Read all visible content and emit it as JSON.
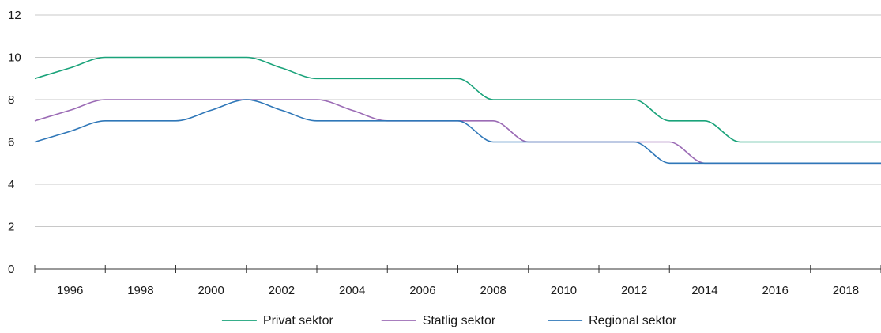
{
  "chart_data": {
    "type": "line",
    "title": "",
    "xlabel": "",
    "ylabel": "",
    "ylim": [
      0,
      12
    ],
    "yticks": [
      0,
      2,
      4,
      6,
      8,
      10,
      12
    ],
    "x": [
      1995,
      1996,
      1997,
      1998,
      1999,
      2000,
      2001,
      2002,
      2003,
      2004,
      2005,
      2006,
      2007,
      2008,
      2009,
      2010,
      2011,
      2012,
      2013,
      2014,
      2015,
      2016,
      2017,
      2018,
      2019
    ],
    "xlim": [
      1995,
      2019
    ],
    "xtick_labels": [
      "1996",
      "1998",
      "2000",
      "2002",
      "2004",
      "2006",
      "2008",
      "2010",
      "2012",
      "2014",
      "2016",
      "2018"
    ],
    "grid": "horizontal",
    "legend_position": "bottom",
    "series": [
      {
        "name": "Privat sektor",
        "color": "#1aa37a",
        "values": [
          9,
          9.5,
          10,
          10,
          10,
          10,
          10,
          9.5,
          9,
          9,
          9,
          9,
          9,
          8,
          8,
          8,
          8,
          8,
          7,
          7,
          6,
          6,
          6,
          6,
          6
        ]
      },
      {
        "name": "Statlig sektor",
        "color": "#9b6bb5",
        "values": [
          7,
          7.5,
          8,
          8,
          8,
          8,
          8,
          8,
          8,
          7.5,
          7,
          7,
          7,
          7,
          6,
          6,
          6,
          6,
          6,
          5,
          5,
          5,
          5,
          5,
          5
        ]
      },
      {
        "name": "Regional sektor",
        "color": "#2f77b8",
        "values": [
          6,
          6.5,
          7,
          7,
          7,
          7.5,
          8,
          7.5,
          7,
          7,
          7,
          7,
          7,
          6,
          6,
          6,
          6,
          6,
          5,
          5,
          5,
          5,
          5,
          5,
          5
        ]
      }
    ]
  }
}
